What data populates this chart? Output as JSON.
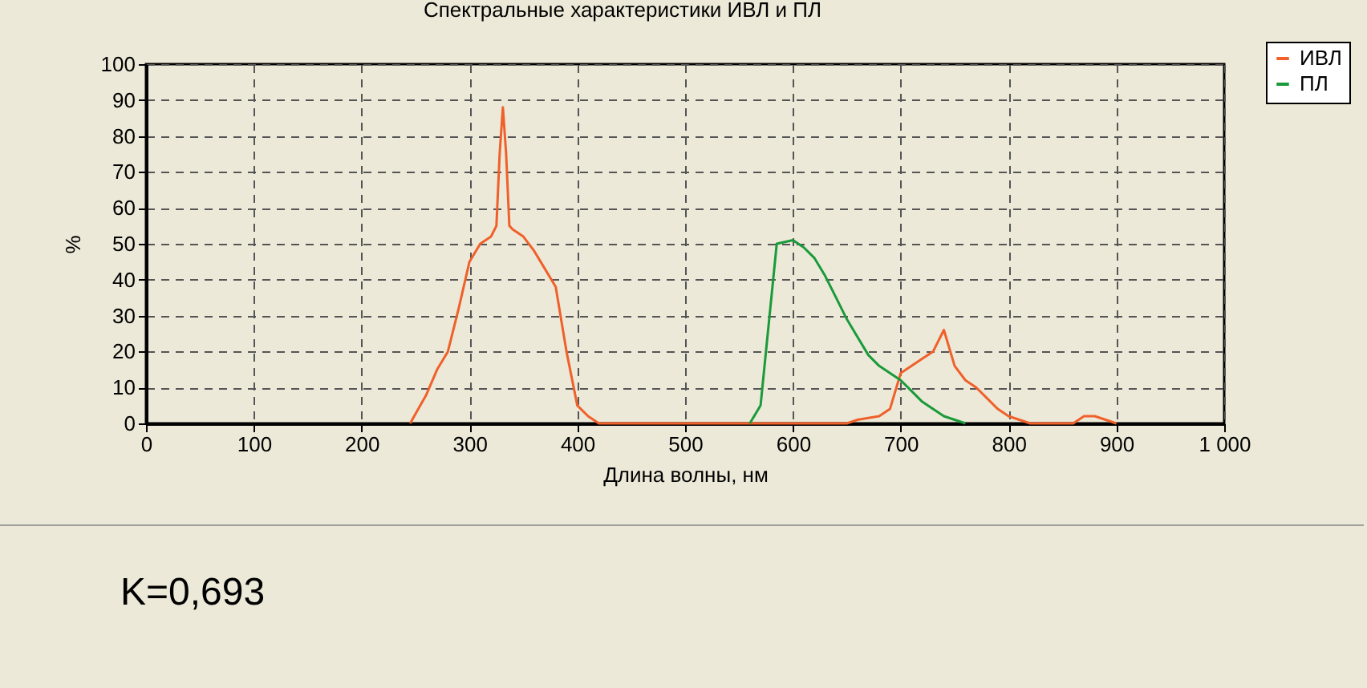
{
  "chart_data": {
    "type": "line",
    "title": "Спектральные характеристики ИВЛ и ПЛ",
    "xlabel": "Длина волны, нм",
    "ylabel": "%",
    "annotations": [
      "K=0,693"
    ],
    "xlim": [
      0,
      1000
    ],
    "xticks": [
      0,
      100,
      200,
      300,
      400,
      500,
      600,
      700,
      800,
      900,
      {
        "value": 1000,
        "label": "1 000"
      }
    ],
    "ylim": [
      0,
      100
    ],
    "yticks": [
      0,
      10,
      20,
      30,
      40,
      50,
      60,
      70,
      80,
      90,
      100
    ],
    "grid": true,
    "legend": "top right",
    "line_style": "solid",
    "marker": "none",
    "series": [
      {
        "name": "ИВЛ",
        "color": "#f0602a",
        "x": [
          245,
          260,
          270,
          280,
          290,
          300,
          310,
          320,
          325,
          328,
          331,
          334,
          337,
          340,
          350,
          360,
          370,
          380,
          390,
          400,
          410,
          420,
          500,
          600,
          650,
          660,
          680,
          690,
          700,
          710,
          720,
          730,
          740,
          750,
          760,
          770,
          780,
          790,
          800,
          810,
          820,
          860,
          870,
          880,
          890,
          900
        ],
        "values": [
          0,
          8,
          15,
          20,
          32,
          45,
          50,
          52,
          55,
          75,
          88,
          75,
          55,
          54,
          52,
          48,
          43,
          38,
          20,
          5,
          2,
          0,
          0,
          0,
          0,
          1,
          2,
          4,
          14,
          16,
          18,
          20,
          26,
          16,
          12,
          10,
          7,
          4,
          2,
          1,
          0,
          0,
          2,
          2,
          1,
          0
        ]
      },
      {
        "name": "ПЛ",
        "color": "#1a9a3a",
        "x": [
          560,
          570,
          580,
          585,
          600,
          610,
          620,
          630,
          640,
          650,
          660,
          670,
          680,
          690,
          700,
          710,
          720,
          730,
          740,
          750,
          760
        ],
        "values": [
          0,
          5,
          35,
          50,
          51,
          49,
          46,
          41,
          35,
          29,
          24,
          19,
          16,
          14,
          12,
          9,
          6,
          4,
          2,
          1,
          0
        ]
      }
    ]
  }
}
